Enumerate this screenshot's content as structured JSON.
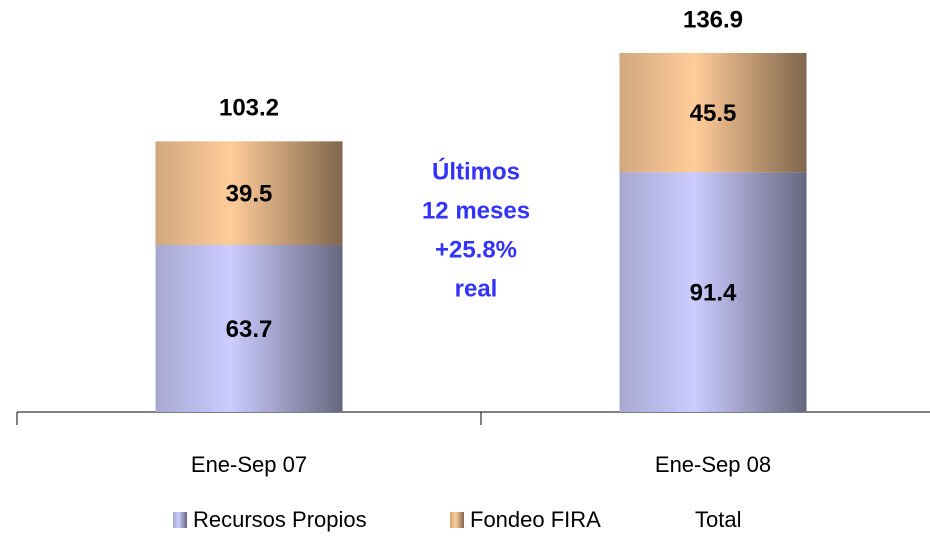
{
  "chart_data": {
    "type": "stacked-bar",
    "categories": [
      "Ene-Sep 07",
      "Ene-Sep 08"
    ],
    "series": [
      {
        "name": "Recursos Propios",
        "color": "#ccccff",
        "values": [
          63.7,
          91.4
        ]
      },
      {
        "name": "Fondeo FIRA",
        "color": "#ffcc99",
        "values": [
          39.5,
          45.5
        ]
      },
      {
        "name": "Total",
        "values": [
          103.2,
          136.9
        ]
      }
    ],
    "annotation": [
      "Últimos",
      "12 meses",
      "+25.8%",
      "real"
    ],
    "annotation_color": "#3333ff"
  }
}
